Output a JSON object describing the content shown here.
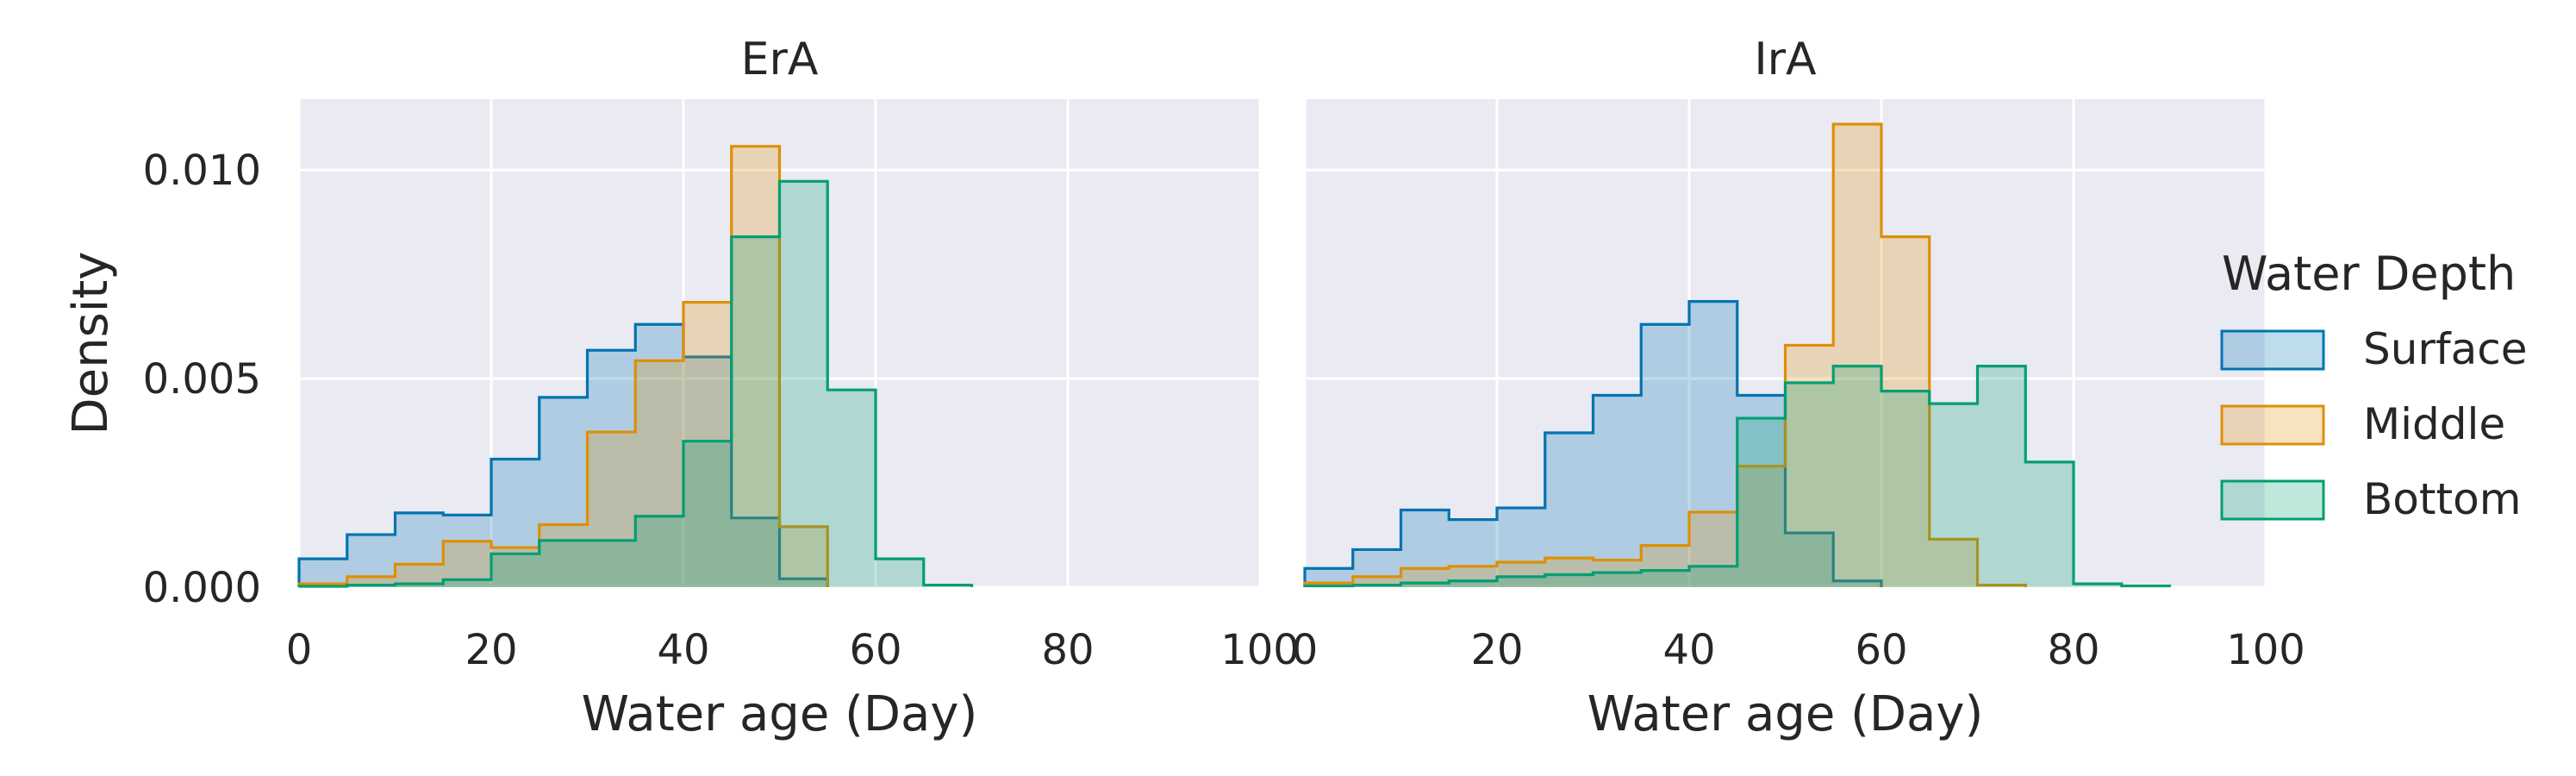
{
  "chart_data": [
    {
      "type": "histogram",
      "title": "ErA",
      "xlabel": "Water age (Day)",
      "ylabel": "Density",
      "xlim": [
        0,
        100
      ],
      "ylim": [
        0,
        0.0117
      ],
      "xticks": [
        0,
        20,
        40,
        60,
        80,
        100
      ],
      "xtick_labels": [
        "0",
        "20",
        "40",
        "60",
        "80",
        "100"
      ],
      "yticks": [
        0,
        0.005,
        0.01
      ],
      "ytick_labels": [
        "0.000",
        "0.005",
        "0.010"
      ],
      "grid": true,
      "bin_edges": [
        0,
        5,
        10,
        15,
        20,
        25,
        30,
        35,
        40,
        45,
        50,
        55,
        60,
        65,
        70,
        75,
        80,
        85,
        90,
        95,
        100
      ],
      "series": [
        {
          "name": "Surface",
          "values": [
            0.00068,
            0.00126,
            0.00178,
            0.00173,
            0.00307,
            0.00455,
            0.00568,
            0.0063,
            0.00552,
            0.00166,
            0.0002,
            0,
            0,
            0,
            0,
            0,
            0,
            0,
            0,
            0
          ]
        },
        {
          "name": "Middle",
          "values": [
            8e-05,
            0.00025,
            0.00055,
            0.0011,
            0.00095,
            0.0015,
            0.00372,
            0.00543,
            0.00683,
            0.01057,
            0.00145,
            0,
            0,
            0,
            0,
            0,
            0,
            0,
            0,
            0
          ]
        },
        {
          "name": "Bottom",
          "values": [
            2e-05,
            5e-05,
            8e-05,
            0.00018,
            0.0008,
            0.00112,
            0.00112,
            0.0017,
            0.0035,
            0.0084,
            0.00973,
            0.00473,
            0.00068,
            5e-05,
            0,
            0,
            0,
            0,
            0,
            0
          ]
        }
      ]
    },
    {
      "type": "histogram",
      "title": "IrA",
      "xlabel": "Water age (Day)",
      "xlim": [
        0,
        100
      ],
      "ylim": [
        0,
        0.0117
      ],
      "xticks": [
        0,
        20,
        40,
        60,
        80,
        100
      ],
      "xtick_labels": [
        "0",
        "20",
        "40",
        "60",
        "80",
        "100"
      ],
      "grid": true,
      "bin_edges": [
        0,
        5,
        10,
        15,
        20,
        25,
        30,
        35,
        40,
        45,
        50,
        55,
        60,
        65,
        70,
        75,
        80,
        85,
        90,
        95,
        100
      ],
      "series": [
        {
          "name": "Surface",
          "values": [
            0.00045,
            0.0009,
            0.00185,
            0.00162,
            0.0019,
            0.0037,
            0.0046,
            0.0063,
            0.00685,
            0.0046,
            0.0013,
            0.00015,
            0,
            0,
            0,
            0,
            0,
            0,
            0,
            0
          ]
        },
        {
          "name": "Middle",
          "values": [
            0.0001,
            0.00025,
            0.00045,
            0.0005,
            0.0006,
            0.0007,
            0.00065,
            0.001,
            0.0018,
            0.0029,
            0.0058,
            0.0111,
            0.0084,
            0.00115,
            5e-05,
            0,
            0,
            0,
            0,
            0
          ]
        },
        {
          "name": "Bottom",
          "values": [
            3e-05,
            5e-05,
            0.0001,
            0.00015,
            0.00025,
            0.0003,
            0.00035,
            0.0004,
            0.0005,
            0.00405,
            0.0049,
            0.0053,
            0.0047,
            0.0044,
            0.0053,
            0.003,
            8e-05,
            3e-05,
            0,
            0
          ]
        }
      ]
    }
  ],
  "legend": {
    "title": "Water Depth",
    "placement": "right",
    "items": [
      {
        "label": "Surface",
        "color": "#0173b2"
      },
      {
        "label": "Middle",
        "color": "#de8f05"
      },
      {
        "label": "Bottom",
        "color": "#029e73"
      }
    ]
  },
  "style": {
    "plot_background": "#eaeaf2",
    "grid_color": "#ffffff",
    "text_color": "#262626",
    "fill_opacity": 0.25
  }
}
